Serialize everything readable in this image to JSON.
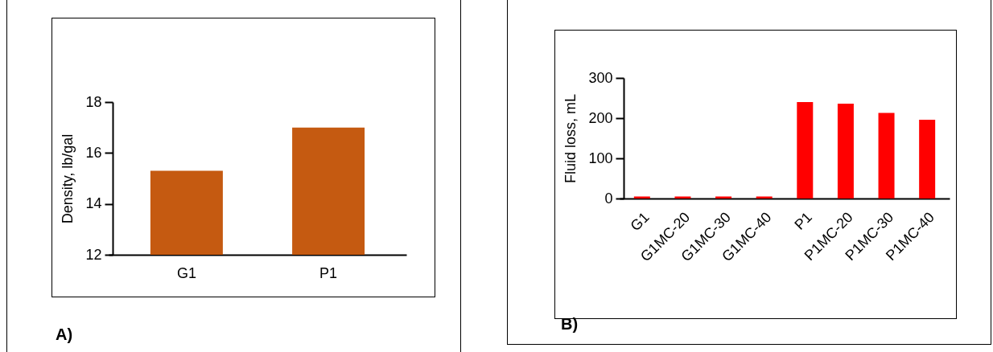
{
  "chart_data": [
    {
      "type": "bar",
      "ylabel": "Density, lb/gal",
      "categories": [
        "G1",
        "P1"
      ],
      "values": [
        15.3,
        17.0
      ],
      "color": "#c55a11",
      "ylim": [
        12,
        18
      ],
      "yticks": [
        12,
        14,
        16,
        18
      ],
      "annotations": [
        "A)"
      ]
    },
    {
      "type": "bar",
      "ylabel": "Fluid loss, mL",
      "categories": [
        "G1",
        "G1MC-20",
        "G1MC-30",
        "G1MC-40",
        "P1",
        "P1MC-20",
        "P1MC-30",
        "P1MC-40"
      ],
      "values": [
        5,
        5,
        5,
        5,
        240,
        236,
        213,
        196
      ],
      "color": "#ff0000",
      "ylim": [
        0,
        300
      ],
      "yticks": [
        0,
        100,
        200,
        300
      ],
      "annotations": [
        "B)"
      ]
    }
  ]
}
